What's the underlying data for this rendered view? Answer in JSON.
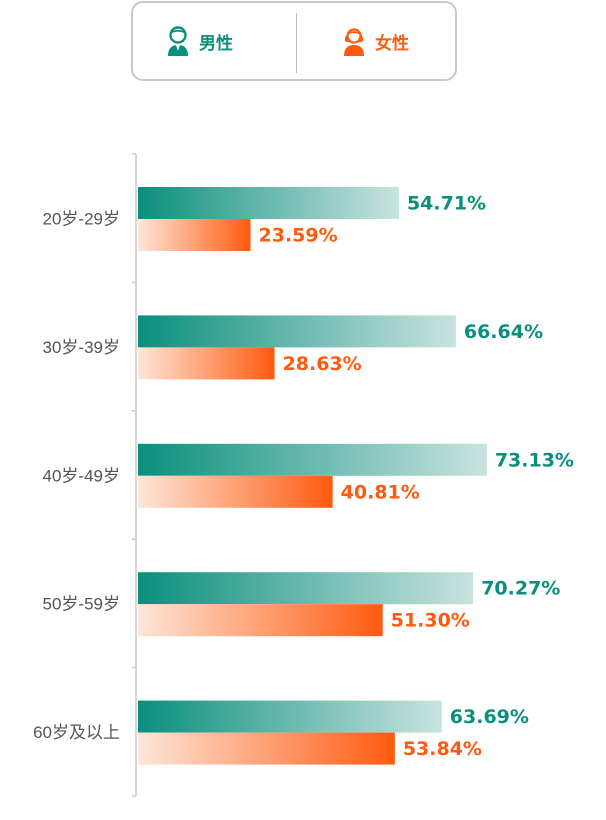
{
  "legend": {
    "male_label": "男性",
    "female_label": "女性",
    "male_icon": "male-user-icon",
    "female_icon": "female-user-icon"
  },
  "colors": {
    "male": "#0a8f7d",
    "male_light": "#c9e3df",
    "female": "#ff5a0f",
    "female_light": "#fde6d9",
    "axis": "#c8c8c8",
    "category_text": "#555555"
  },
  "chart_data": {
    "type": "bar",
    "orientation": "horizontal",
    "categories": [
      "20岁-29岁",
      "30岁-39岁",
      "40岁-49岁",
      "50岁-59岁",
      "60岁及以上"
    ],
    "series": [
      {
        "name": "男性",
        "values": [
          54.71,
          66.64,
          73.13,
          70.27,
          63.69
        ],
        "labels": [
          "54.71%",
          "66.64%",
          "73.13%",
          "70.27%",
          "63.69%"
        ]
      },
      {
        "name": "女性",
        "values": [
          23.59,
          28.63,
          40.81,
          51.3,
          53.84
        ],
        "labels": [
          "23.59%",
          "28.63%",
          "40.81%",
          "51.30%",
          "53.84%"
        ]
      }
    ],
    "value_unit": "%",
    "xlim": [
      0,
      100
    ],
    "grid": false,
    "legend": "top-center"
  }
}
